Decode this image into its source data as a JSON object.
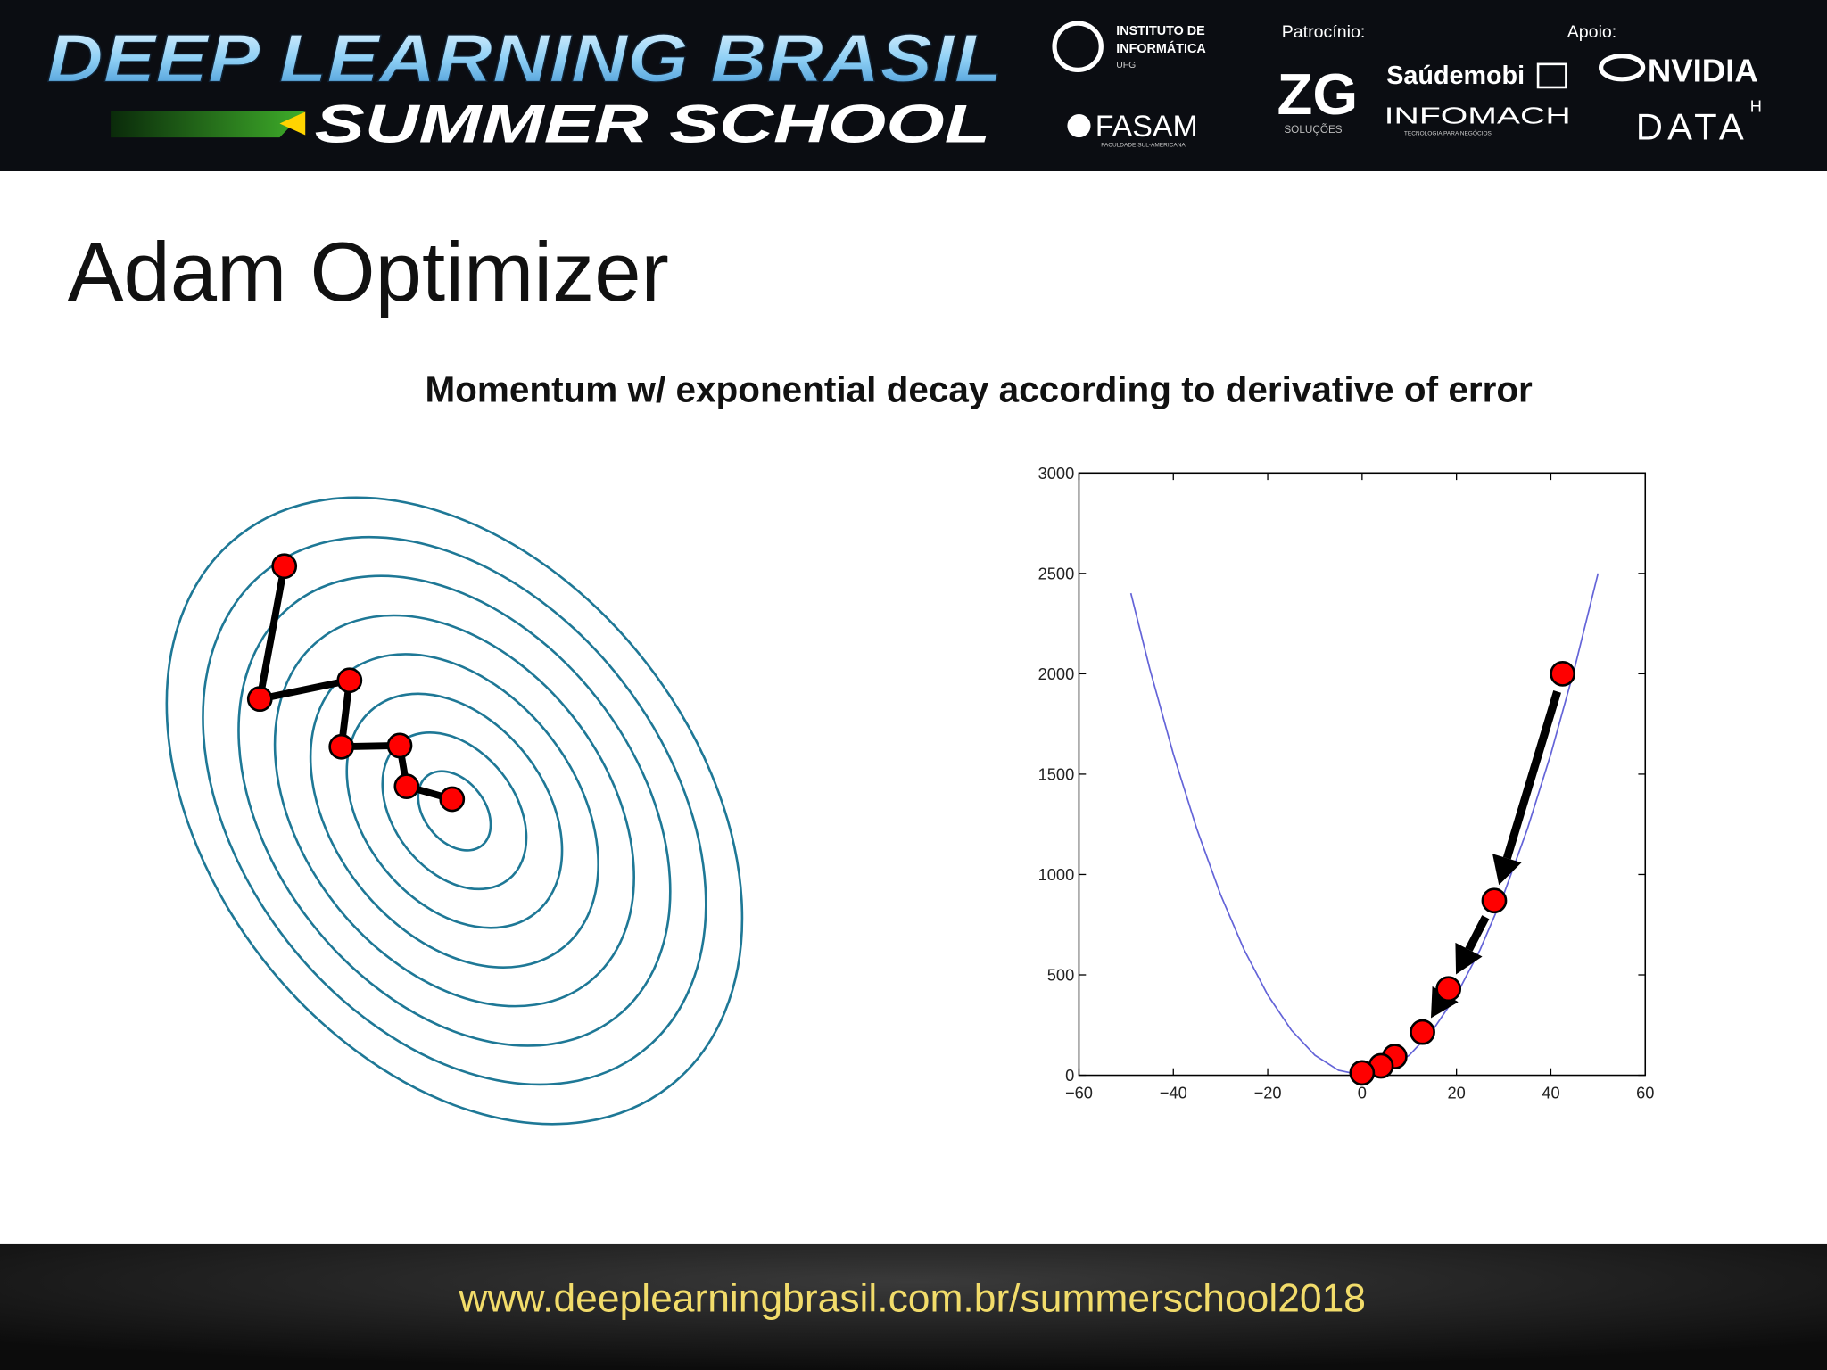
{
  "header": {
    "title_line1": "DEEP LEARNING BRASIL",
    "title_line2": "SUMMER SCHOOL",
    "partner1": "INSTITUTO DE",
    "partner1_line2": "INFORMÁTICA",
    "partner1_line3": "UFG",
    "partner2": "FASAM",
    "partner2_sub": "FACULDADE SUL-AMERICANA",
    "sponsor_label": "Patrocínio:",
    "sponsor1": "ZG",
    "sponsor1_sub": "SOLUÇÕES",
    "sponsor2": "Saúdemobi",
    "sponsor3": "INFOMACH",
    "sponsor3_sub": "TECNOLOGIA PARA NEGÓCIOS",
    "support_label": "Apoio:",
    "support1": "NVIDIA",
    "support2": "DATA",
    "support2_sup": "H"
  },
  "slide": {
    "title": "Adam Optimizer",
    "subtitle": "Momentum w/ exponential decay according to derivative of error"
  },
  "chart_data": {
    "type": "line",
    "xlim": [
      -60,
      60
    ],
    "ylim": [
      0,
      3000
    ],
    "xticks": [
      {
        "value": -60,
        "label": "−60"
      },
      {
        "value": -40,
        "label": "−40"
      },
      {
        "value": -20,
        "label": "−20"
      },
      0,
      20,
      40,
      60
    ],
    "yticks": [
      0,
      500,
      1000,
      1500,
      2000,
      2500,
      3000
    ],
    "grid": false,
    "series": [
      {
        "style": "line",
        "color": "#6464d8",
        "x": [
          -49,
          -45,
          -40,
          -35,
          -30,
          -25,
          -20,
          -15,
          -10,
          -5,
          0,
          5,
          10,
          15,
          20,
          25,
          30,
          35,
          40,
          45,
          50
        ],
        "values": [
          2401,
          2025,
          1600,
          1225,
          900,
          625,
          400,
          225,
          100,
          25,
          0,
          25,
          100,
          225,
          400,
          625,
          900,
          1225,
          1600,
          2025,
          2500
        ]
      },
      {
        "style": "marker",
        "color": "#ff0000",
        "x": [
          42.5,
          28,
          18.3,
          12.8,
          6.9,
          4,
          0
        ],
        "values": [
          2000,
          870,
          430,
          215,
          93,
          47,
          12
        ]
      }
    ]
  },
  "footer": {
    "url": "www.deeplearningbrasil.com.br/summerschool2018"
  }
}
